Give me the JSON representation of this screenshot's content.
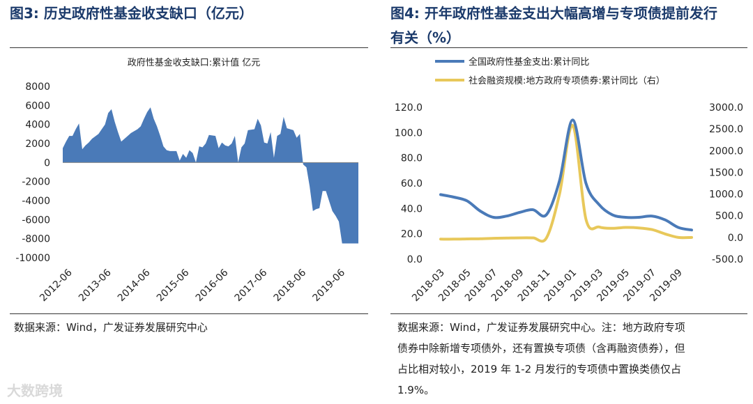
{
  "figures": {
    "left": {
      "title": "图3:  历史政府性基金收支缺口（亿元）",
      "source": "数据来源：Wind，广发证券发展研究中心"
    },
    "right": {
      "title_line1": "图4:  开年政府性基金支出大幅高增与专项债提前发行",
      "title_line2": "有关（%）",
      "source_lines": [
        "数据来源：Wind，广发证券发展研究中心。注：地方政府专项",
        "债券中除新增专项债外，还有置换专项债（含再融资债券），但",
        "占比相对较小，2019 年 1-2 月发行的专项债中置换类债仅占",
        "1.9%。"
      ]
    }
  },
  "watermark": "大数跨境",
  "colors": {
    "title": "#1b3a6b",
    "area": "#4a7ab8",
    "line_blue": "#4a7ab8",
    "line_yellow": "#e8c85a"
  },
  "chart_data": [
    {
      "type": "area",
      "title": "政府性基金收支缺口:累计值  亿元",
      "xlabel": "",
      "ylabel": "",
      "ylim": [
        -10000,
        8000
      ],
      "yticks": [
        "8000",
        "6000",
        "4000",
        "2000",
        "0",
        "-2000",
        "-4000",
        "-6000",
        "-8000",
        "-10000"
      ],
      "xticks": [
        "2012-06",
        "2013-06",
        "2014-06",
        "2015-06",
        "2016-06",
        "2017-06",
        "2018-06",
        "2019-06"
      ],
      "legend": "none",
      "x": [
        "2012-03",
        "2012-04",
        "2012-05",
        "2012-06",
        "2012-07",
        "2012-08",
        "2012-09",
        "2012-10",
        "2012-11",
        "2012-12",
        "2013-02",
        "2013-03",
        "2013-04",
        "2013-05",
        "2013-06",
        "2013-07",
        "2013-08",
        "2013-09",
        "2013-10",
        "2013-11",
        "2013-12",
        "2014-02",
        "2014-03",
        "2014-04",
        "2014-05",
        "2014-06",
        "2014-07",
        "2014-08",
        "2014-09",
        "2014-10",
        "2014-11",
        "2014-12",
        "2015-02",
        "2015-03",
        "2015-04",
        "2015-05",
        "2015-06",
        "2015-07",
        "2015-08",
        "2015-09",
        "2015-10",
        "2015-11",
        "2015-12",
        "2016-02",
        "2016-03",
        "2016-04",
        "2016-05",
        "2016-06",
        "2016-07",
        "2016-08",
        "2016-09",
        "2016-10",
        "2016-11",
        "2016-12",
        "2017-02",
        "2017-03",
        "2017-04",
        "2017-05",
        "2017-06",
        "2017-07",
        "2017-08",
        "2017-09",
        "2017-10",
        "2017-11",
        "2017-12",
        "2018-02",
        "2018-03",
        "2018-04",
        "2018-05",
        "2018-06",
        "2018-07",
        "2018-08",
        "2018-09",
        "2018-10",
        "2018-11",
        "2018-12",
        "2019-02",
        "2019-03",
        "2019-04",
        "2019-05",
        "2019-06",
        "2019-07",
        "2019-08",
        "2019-09",
        "2019-10"
      ],
      "values": [
        1500,
        2200,
        2800,
        2800,
        3500,
        4100,
        1400,
        1800,
        2100,
        2500,
        3000,
        3500,
        4000,
        5200,
        5600,
        4300,
        3200,
        2200,
        2500,
        2800,
        3100,
        3500,
        3800,
        4600,
        5300,
        5800,
        4600,
        3800,
        2800,
        1700,
        1300,
        1200,
        1200,
        200,
        900,
        500,
        1300,
        1000,
        0,
        1700,
        1600,
        2000,
        2900,
        2800,
        1500,
        2100,
        1800,
        1700,
        2000,
        2800,
        0,
        1600,
        2000,
        3400,
        3500,
        4600,
        3900,
        2100,
        2000,
        3200,
        500,
        2800,
        3000,
        4800,
        3600,
        3400,
        2600,
        3000,
        -200,
        -500,
        -2500,
        -5100,
        -4900,
        -4800,
        -3000,
        -3000,
        -5100,
        -5600,
        -6200,
        -8500,
        -8500,
        -8500,
        -8500,
        -8500,
        -8500
      ]
    },
    {
      "type": "line",
      "title": "",
      "xlabel": "",
      "ylabel": "",
      "ylim": [
        0,
        120
      ],
      "y2lim": [
        -500,
        3000
      ],
      "yticks": [
        "120.0",
        "100.0",
        "80.0",
        "60.0",
        "40.0",
        "20.0",
        "0.0"
      ],
      "y2ticks": [
        "3000.0",
        "2500.0",
        "2000.0",
        "1500.0",
        "1000.0",
        "500.0",
        "0.0",
        "-500.0"
      ],
      "xticks": [
        "2018-03",
        "2018-05",
        "2018-07",
        "2018-09",
        "2018-11",
        "2019-01",
        "2019-03",
        "2019-05",
        "2019-07",
        "2019-09"
      ],
      "legend": "top-left",
      "x": [
        "2018-03",
        "2018-04",
        "2018-05",
        "2018-06",
        "2018-07",
        "2018-08",
        "2018-09",
        "2018-10",
        "2018-11",
        "2018-12",
        "2019-01",
        "2019-02",
        "2019-03",
        "2019-04",
        "2019-05",
        "2019-06",
        "2019-07",
        "2019-08",
        "2019-09",
        "2019-10"
      ],
      "series": [
        {
          "name": "全国政府性基金支出:累计同比",
          "axis": "left",
          "values": [
            51,
            49,
            46,
            38,
            33,
            34,
            37,
            39,
            35,
            62,
            110,
            60,
            43,
            35,
            33,
            33,
            34,
            31,
            25,
            23
          ]
        },
        {
          "name": "社会融资规模:地方政府专项债券:累计同比（右）",
          "axis": "right",
          "values": [
            -40,
            -40,
            -35,
            -30,
            -20,
            -15,
            -10,
            -10,
            -15,
            1000,
            2580,
            420,
            240,
            210,
            230,
            220,
            180,
            80,
            0,
            0
          ]
        }
      ]
    }
  ]
}
